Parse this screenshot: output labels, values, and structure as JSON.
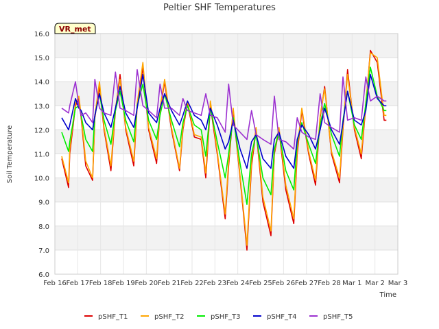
{
  "chart_data": {
    "type": "line",
    "title": "Peltier SHF Temperatures",
    "xlabel": "Time",
    "ylabel": "Soil Temperature",
    "badge": "VR_met",
    "ylim": [
      6.0,
      16.0
    ],
    "yticks": [
      "6.0",
      "7.0",
      "8.0",
      "9.0",
      "10.0",
      "11.0",
      "12.0",
      "13.0",
      "14.0",
      "15.0",
      "16.0"
    ],
    "xlim": [
      0,
      15
    ],
    "xticks": [
      "Feb 16",
      "Feb 17",
      "Feb 18",
      "Feb 19",
      "Feb 20",
      "Feb 21",
      "Feb 22",
      "Feb 23",
      "Feb 24",
      "Feb 25",
      "Feb 26",
      "Feb 27",
      "Feb 28",
      "Mar 1",
      "Mar 2",
      "Mar 3"
    ],
    "grid": true,
    "legend_position": "bottom",
    "series": [
      {
        "name": "pSHF_T1",
        "color": "#dd0000",
        "x": [
          0.3,
          0.6,
          0.65,
          0.9,
          1.05,
          1.15,
          1.35,
          1.65,
          1.75,
          1.95,
          2.15,
          2.45,
          2.65,
          2.85,
          3.1,
          3.45,
          3.6,
          3.85,
          4.1,
          4.45,
          4.6,
          4.8,
          5.1,
          5.45,
          5.6,
          5.8,
          6.1,
          6.4,
          6.6,
          6.8,
          7.1,
          7.45,
          7.6,
          7.8,
          8.1,
          8.4,
          8.6,
          8.8,
          9.1,
          9.45,
          9.6,
          9.8,
          10.1,
          10.45,
          10.6,
          10.8,
          11.1,
          11.4,
          11.6,
          11.8,
          12.1,
          12.45,
          12.6,
          12.8,
          13.1,
          13.4,
          13.6,
          13.8,
          14.1,
          14.4,
          14.5
        ],
        "y": [
          10.8,
          9.6,
          11.0,
          13.0,
          13.3,
          12.5,
          10.5,
          9.9,
          12.5,
          13.8,
          12.0,
          10.3,
          12.8,
          14.3,
          12.0,
          10.5,
          13.0,
          14.6,
          12.0,
          10.6,
          12.8,
          14.0,
          12.0,
          10.3,
          12.0,
          13.1,
          11.7,
          11.6,
          10.0,
          13.0,
          11.0,
          8.3,
          10.5,
          12.8,
          10.0,
          7.0,
          10.5,
          12.0,
          9.0,
          7.6,
          11.0,
          12.0,
          9.5,
          8.1,
          11.0,
          12.8,
          11.0,
          9.7,
          12.5,
          13.8,
          11.0,
          9.8,
          12.0,
          14.5,
          12.0,
          10.8,
          13.0,
          15.3,
          14.8,
          12.4,
          12.4
        ]
      },
      {
        "name": "pSHF_T2",
        "color": "#ffa500",
        "x": [
          0.3,
          0.6,
          0.65,
          0.9,
          1.05,
          1.15,
          1.35,
          1.65,
          1.75,
          1.95,
          2.15,
          2.45,
          2.65,
          2.85,
          3.1,
          3.45,
          3.6,
          3.85,
          4.1,
          4.45,
          4.6,
          4.8,
          5.1,
          5.45,
          5.6,
          5.8,
          6.1,
          6.4,
          6.6,
          6.8,
          7.1,
          7.45,
          7.6,
          7.8,
          8.1,
          8.4,
          8.6,
          8.8,
          9.1,
          9.45,
          9.6,
          9.8,
          10.1,
          10.45,
          10.6,
          10.8,
          11.1,
          11.4,
          11.6,
          11.8,
          12.1,
          12.45,
          12.6,
          12.8,
          13.1,
          13.4,
          13.6,
          13.8,
          14.1,
          14.4,
          14.5
        ],
        "y": [
          10.9,
          9.8,
          11.2,
          13.1,
          13.4,
          12.6,
          10.7,
          10.0,
          12.6,
          14.0,
          12.1,
          10.5,
          12.9,
          14.1,
          12.1,
          10.7,
          13.1,
          14.8,
          12.1,
          10.8,
          12.9,
          14.1,
          12.1,
          10.4,
          12.1,
          13.2,
          11.8,
          11.7,
          10.2,
          13.2,
          11.1,
          8.5,
          10.7,
          12.9,
          10.1,
          7.2,
          10.7,
          12.1,
          9.2,
          7.8,
          11.1,
          12.1,
          9.7,
          8.3,
          11.2,
          12.9,
          11.1,
          9.9,
          12.6,
          13.7,
          11.1,
          10.0,
          12.1,
          14.3,
          12.1,
          11.0,
          13.1,
          15.2,
          15.0,
          12.6,
          12.6
        ]
      },
      {
        "name": "pSHF_T3",
        "color": "#00ee00",
        "x": [
          0.3,
          0.6,
          0.65,
          0.9,
          1.05,
          1.15,
          1.35,
          1.65,
          1.75,
          1.95,
          2.15,
          2.45,
          2.65,
          2.85,
          3.1,
          3.45,
          3.6,
          3.85,
          4.1,
          4.45,
          4.6,
          4.8,
          5.1,
          5.45,
          5.6,
          5.8,
          6.1,
          6.4,
          6.6,
          6.8,
          7.1,
          7.45,
          7.6,
          7.8,
          8.1,
          8.4,
          8.6,
          8.8,
          9.1,
          9.45,
          9.6,
          9.8,
          10.1,
          10.45,
          10.6,
          10.8,
          11.1,
          11.4,
          11.6,
          11.8,
          12.1,
          12.45,
          12.6,
          12.8,
          13.1,
          13.4,
          13.6,
          13.8,
          14.1,
          14.4,
          14.5
        ],
        "y": [
          11.9,
          11.1,
          11.5,
          12.9,
          13.0,
          12.6,
          11.6,
          11.1,
          12.6,
          13.5,
          12.4,
          11.4,
          12.8,
          13.6,
          12.4,
          11.5,
          13.0,
          13.9,
          12.4,
          11.6,
          12.6,
          13.5,
          12.4,
          11.3,
          12.3,
          13.0,
          12.2,
          12.0,
          10.9,
          12.9,
          11.5,
          10.0,
          11.0,
          12.5,
          10.6,
          8.9,
          11.0,
          11.8,
          10.0,
          9.3,
          11.2,
          11.9,
          10.3,
          9.5,
          11.5,
          12.3,
          11.4,
          10.6,
          12.2,
          13.1,
          11.8,
          10.9,
          12.4,
          13.6,
          12.2,
          11.6,
          13.1,
          14.6,
          13.4,
          12.8,
          12.8
        ]
      },
      {
        "name": "pSHF_T4",
        "color": "#0000cc",
        "x": [
          0.3,
          0.6,
          0.65,
          0.9,
          1.05,
          1.15,
          1.35,
          1.65,
          1.75,
          1.95,
          2.15,
          2.45,
          2.65,
          2.85,
          3.1,
          3.45,
          3.6,
          3.85,
          4.1,
          4.45,
          4.6,
          4.8,
          5.1,
          5.45,
          5.6,
          5.8,
          6.1,
          6.4,
          6.6,
          6.8,
          7.1,
          7.45,
          7.6,
          7.8,
          8.1,
          8.4,
          8.6,
          8.8,
          9.1,
          9.45,
          9.6,
          9.8,
          10.1,
          10.45,
          10.6,
          10.8,
          11.1,
          11.4,
          11.6,
          11.8,
          12.1,
          12.45,
          12.6,
          12.8,
          13.1,
          13.4,
          13.6,
          13.8,
          14.1,
          14.4,
          14.5
        ],
        "y": [
          12.5,
          12.0,
          12.2,
          13.3,
          12.9,
          12.8,
          12.3,
          12.0,
          12.6,
          13.5,
          12.7,
          12.1,
          12.9,
          13.8,
          12.7,
          12.1,
          12.9,
          14.3,
          12.7,
          12.3,
          12.9,
          13.5,
          12.8,
          12.2,
          12.6,
          13.2,
          12.6,
          12.4,
          12.0,
          12.9,
          12.2,
          11.2,
          11.5,
          12.4,
          11.2,
          10.4,
          11.5,
          11.8,
          10.8,
          10.4,
          11.6,
          11.9,
          10.9,
          10.4,
          11.6,
          12.2,
          11.8,
          11.2,
          12.0,
          12.9,
          12.0,
          11.4,
          12.3,
          13.6,
          12.4,
          12.2,
          12.8,
          14.3,
          13.3,
          13.0,
          13.0
        ]
      },
      {
        "name": "pSHF_T5",
        "color": "#9b30d0",
        "x": [
          0.3,
          0.6,
          0.65,
          0.9,
          1.05,
          1.15,
          1.35,
          1.65,
          1.75,
          1.95,
          2.15,
          2.45,
          2.65,
          2.85,
          3.1,
          3.45,
          3.6,
          3.85,
          4.1,
          4.45,
          4.6,
          4.8,
          5.1,
          5.45,
          5.6,
          5.8,
          6.1,
          6.4,
          6.6,
          6.8,
          7.1,
          7.45,
          7.6,
          7.8,
          8.1,
          8.4,
          8.6,
          8.8,
          9.1,
          9.45,
          9.6,
          9.8,
          10.1,
          10.45,
          10.6,
          10.8,
          11.1,
          11.4,
          11.6,
          11.8,
          12.1,
          12.45,
          12.6,
          12.8,
          13.1,
          13.4,
          13.6,
          13.8,
          14.1,
          14.4,
          14.5
        ],
        "y": [
          12.9,
          12.7,
          13.0,
          14.0,
          13.0,
          12.6,
          12.7,
          12.3,
          14.1,
          12.9,
          12.7,
          12.6,
          14.4,
          12.9,
          12.8,
          12.6,
          14.5,
          13.0,
          12.8,
          12.5,
          13.9,
          12.9,
          12.9,
          12.6,
          13.3,
          12.8,
          12.7,
          12.6,
          13.5,
          12.6,
          12.5,
          11.9,
          13.9,
          12.2,
          11.9,
          11.6,
          12.8,
          11.8,
          11.6,
          11.4,
          13.4,
          11.6,
          11.5,
          11.2,
          12.5,
          11.9,
          11.7,
          11.6,
          13.5,
          12.3,
          12.1,
          11.9,
          14.2,
          12.4,
          12.5,
          12.4,
          14.2,
          13.2,
          13.4,
          13.2,
          13.2
        ]
      }
    ]
  }
}
